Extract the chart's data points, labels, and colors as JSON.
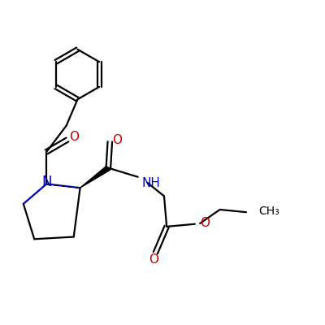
{
  "background_color": "#ffffff",
  "bond_color": "#000000",
  "nitrogen_color": "#0000cc",
  "oxygen_color": "#cc0000",
  "line_width": 1.6,
  "fig_size": [
    4.0,
    4.0
  ],
  "dpi": 100,
  "xlim": [
    0,
    10
  ],
  "ylim": [
    0,
    10
  ]
}
